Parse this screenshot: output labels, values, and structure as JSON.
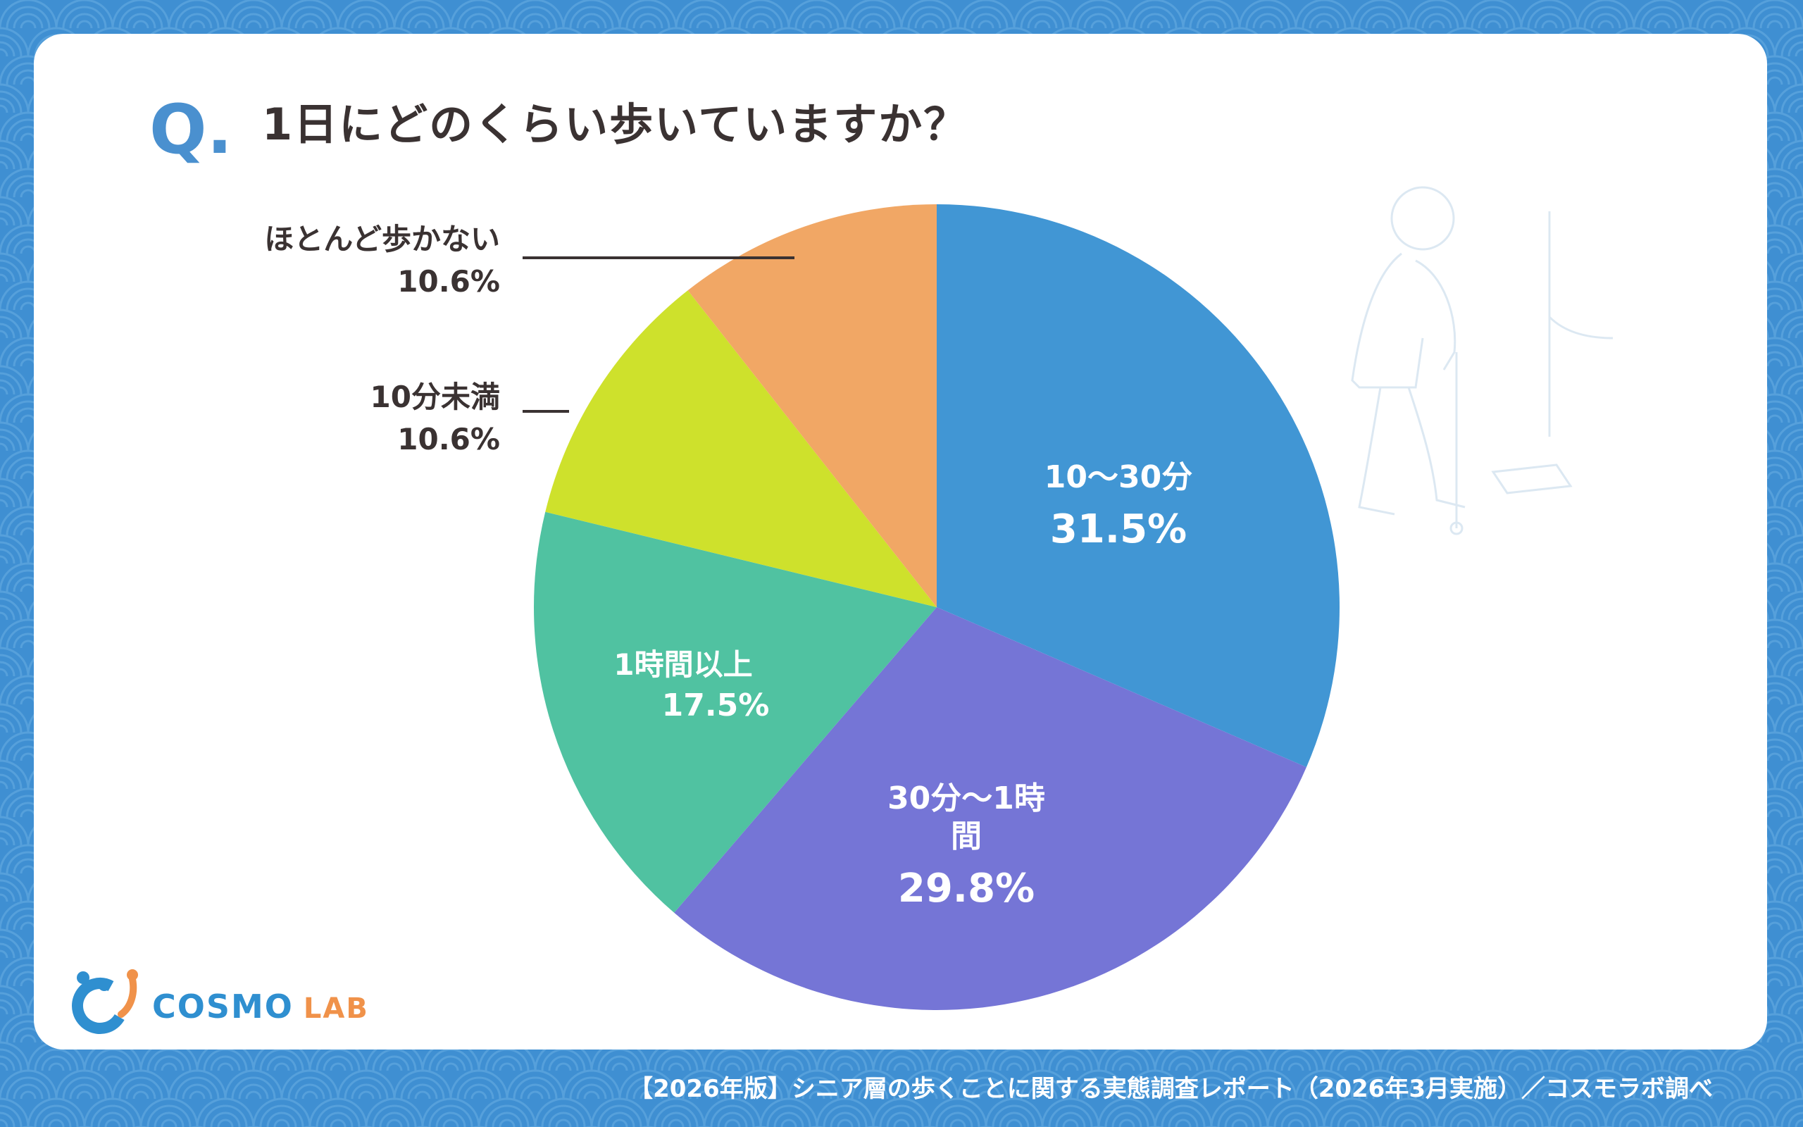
{
  "colors": {
    "background": "#3f8fd2",
    "pattern": "#6aaee3",
    "card": "#ffffff",
    "question_mark": "#4a90cf",
    "title_text": "#3a3232",
    "footer_text": "#ffffff"
  },
  "header": {
    "q_mark": "Q.",
    "question": "1日にどのくらい歩いていますか？"
  },
  "chart_data": {
    "type": "pie",
    "title": "1日にどのくらい歩いていますか？",
    "start_angle_deg": 0,
    "direction": "clockwise",
    "slices": [
      {
        "label": "10〜30分",
        "value": 31.5,
        "value_label": "31.5%",
        "color": "#4196d4",
        "label_position": "inside"
      },
      {
        "label": "30分〜1時間",
        "label_lines": [
          "30分〜1時",
          "間"
        ],
        "value": 29.8,
        "value_label": "29.8%",
        "color": "#7575d6",
        "label_position": "inside"
      },
      {
        "label": "1時間以上",
        "value": 17.5,
        "value_label": "17.5%",
        "color": "#50c2a1",
        "label_position": "inside"
      },
      {
        "label": "10分未満",
        "value": 10.6,
        "value_label": "10.6%",
        "color": "#cee12c",
        "label_position": "outside"
      },
      {
        "label": "ほとんど歩かない",
        "value": 10.6,
        "value_label": "10.6%",
        "color": "#f1a765",
        "label_position": "outside"
      }
    ]
  },
  "footer": {
    "text": "【2026年版】シニア層の歩くことに関する実態調査レポート（2026年3月実施）／コスモラボ調べ"
  },
  "logo": {
    "word1": "COSMO",
    "word2": "LAB"
  }
}
